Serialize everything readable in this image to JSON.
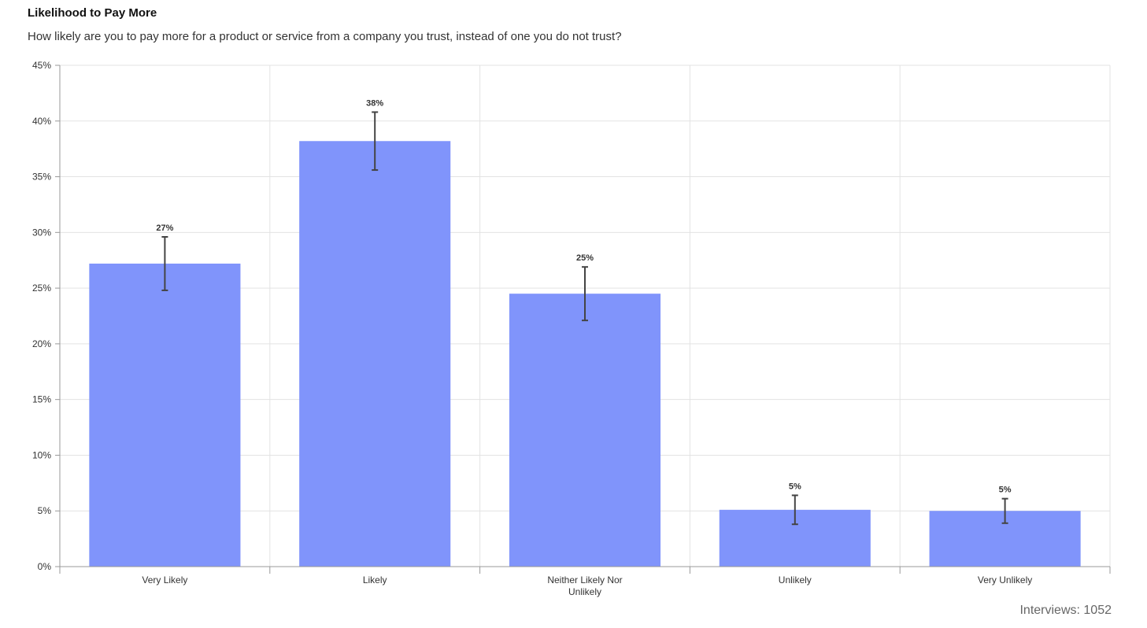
{
  "chart_data": {
    "type": "bar",
    "title": "Likelihood to Pay More",
    "subtitle": "How likely are you to pay more for a product or service from a company you trust, instead of one you do not trust?",
    "categories": [
      [
        "Very Likely"
      ],
      [
        "Likely"
      ],
      [
        "Neither Likely Nor",
        "Unlikely"
      ],
      [
        "Unlikely"
      ],
      [
        "Very Unlikely"
      ]
    ],
    "values": [
      27.2,
      38.2,
      24.5,
      5.1,
      5.0
    ],
    "value_labels": [
      "27%",
      "38%",
      "25%",
      "5%",
      "5%"
    ],
    "error_low": [
      24.8,
      35.6,
      22.1,
      3.8,
      3.9
    ],
    "error_high": [
      29.6,
      40.8,
      26.9,
      6.4,
      6.1
    ],
    "ylim": [
      0,
      45
    ],
    "yticks": [
      0,
      5,
      10,
      15,
      20,
      25,
      30,
      35,
      40,
      45
    ],
    "ytick_labels": [
      "0%",
      "5%",
      "10%",
      "15%",
      "20%",
      "25%",
      "30%",
      "35%",
      "40%",
      "45%"
    ],
    "xlabel": "",
    "ylabel": "",
    "grid": true,
    "colors": {
      "bar": "#8094fb",
      "error_bar": "#444444",
      "grid": "#e3e3e3",
      "axis": "#999999",
      "tick_text": "#333333"
    }
  },
  "footer": {
    "interviews_label": "Interviews: 1052"
  }
}
